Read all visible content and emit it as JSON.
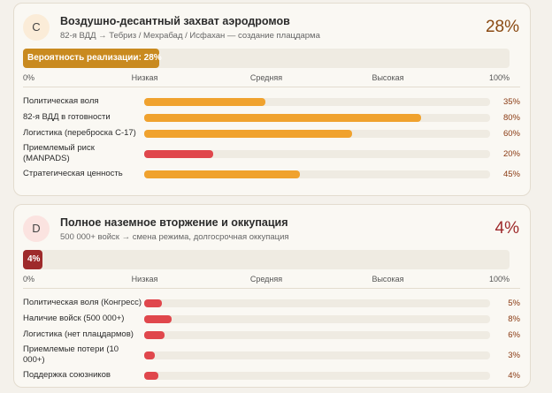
{
  "cards": [
    {
      "badge": "C",
      "title": "Воздушно-десантный захват аэродромов",
      "subtitle": "82-я ВДД → Тебриз / Мехрабад / Исфахан — создание плацдарма",
      "probability": 28,
      "probability_label": "28%",
      "bar_label": "Вероятность реализации: 28%",
      "bar_color": "#c98a1f",
      "pct_color": "#8a4a12",
      "badge_color": "#fbecd8",
      "xlim": [
        0,
        100
      ],
      "scale": [
        {
          "value": 0,
          "label": "0%"
        },
        {
          "value": 25,
          "label": "Низкая"
        },
        {
          "value": 50,
          "label": "Средняя"
        },
        {
          "value": 75,
          "label": "Высокая"
        },
        {
          "value": 100,
          "label": "100%"
        }
      ],
      "factors": [
        {
          "name": "Политическая воля",
          "value": 35,
          "value_label": "35%",
          "color": "#f0a22e"
        },
        {
          "name": "82-я ВДД в готовности",
          "value": 80,
          "value_label": "80%",
          "color": "#f0a22e"
        },
        {
          "name": "Логистика (переброска С-17)",
          "value": 60,
          "value_label": "60%",
          "color": "#f0a22e"
        },
        {
          "name": "Приемлемый риск\n(MANPADS)",
          "value": 20,
          "value_label": "20%",
          "color": "#e0474c"
        },
        {
          "name": "Стратегическая ценность",
          "value": 45,
          "value_label": "45%",
          "color": "#f0a22e"
        }
      ]
    },
    {
      "badge": "D",
      "title": "Полное наземное вторжение и оккупация",
      "subtitle": "500 000+ войск → смена режима, долгосрочная оккупация",
      "probability": 4,
      "probability_label": "4%",
      "bar_label": "4%",
      "bar_color": "#9e2a2b",
      "pct_color": "#9e2a2b",
      "badge_color": "#fbe3e0",
      "xlim": [
        0,
        100
      ],
      "scale": [
        {
          "value": 0,
          "label": "0%"
        },
        {
          "value": 25,
          "label": "Низкая"
        },
        {
          "value": 50,
          "label": "Средняя"
        },
        {
          "value": 75,
          "label": "Высокая"
        },
        {
          "value": 100,
          "label": "100%"
        }
      ],
      "factors": [
        {
          "name": "Политическая воля (Конгресс)",
          "value": 5,
          "value_label": "5%",
          "color": "#e0474c"
        },
        {
          "name": "Наличие войск (500 000+)",
          "value": 8,
          "value_label": "8%",
          "color": "#e0474c"
        },
        {
          "name": "Логистика (нет плацдармов)",
          "value": 6,
          "value_label": "6%",
          "color": "#e0474c"
        },
        {
          "name": "Приемлемые потери (10 000+)",
          "value": 3,
          "value_label": "3%",
          "color": "#e0474c"
        },
        {
          "name": "Поддержка союзников",
          "value": 4,
          "value_label": "4%",
          "color": "#e0474c"
        }
      ]
    }
  ]
}
